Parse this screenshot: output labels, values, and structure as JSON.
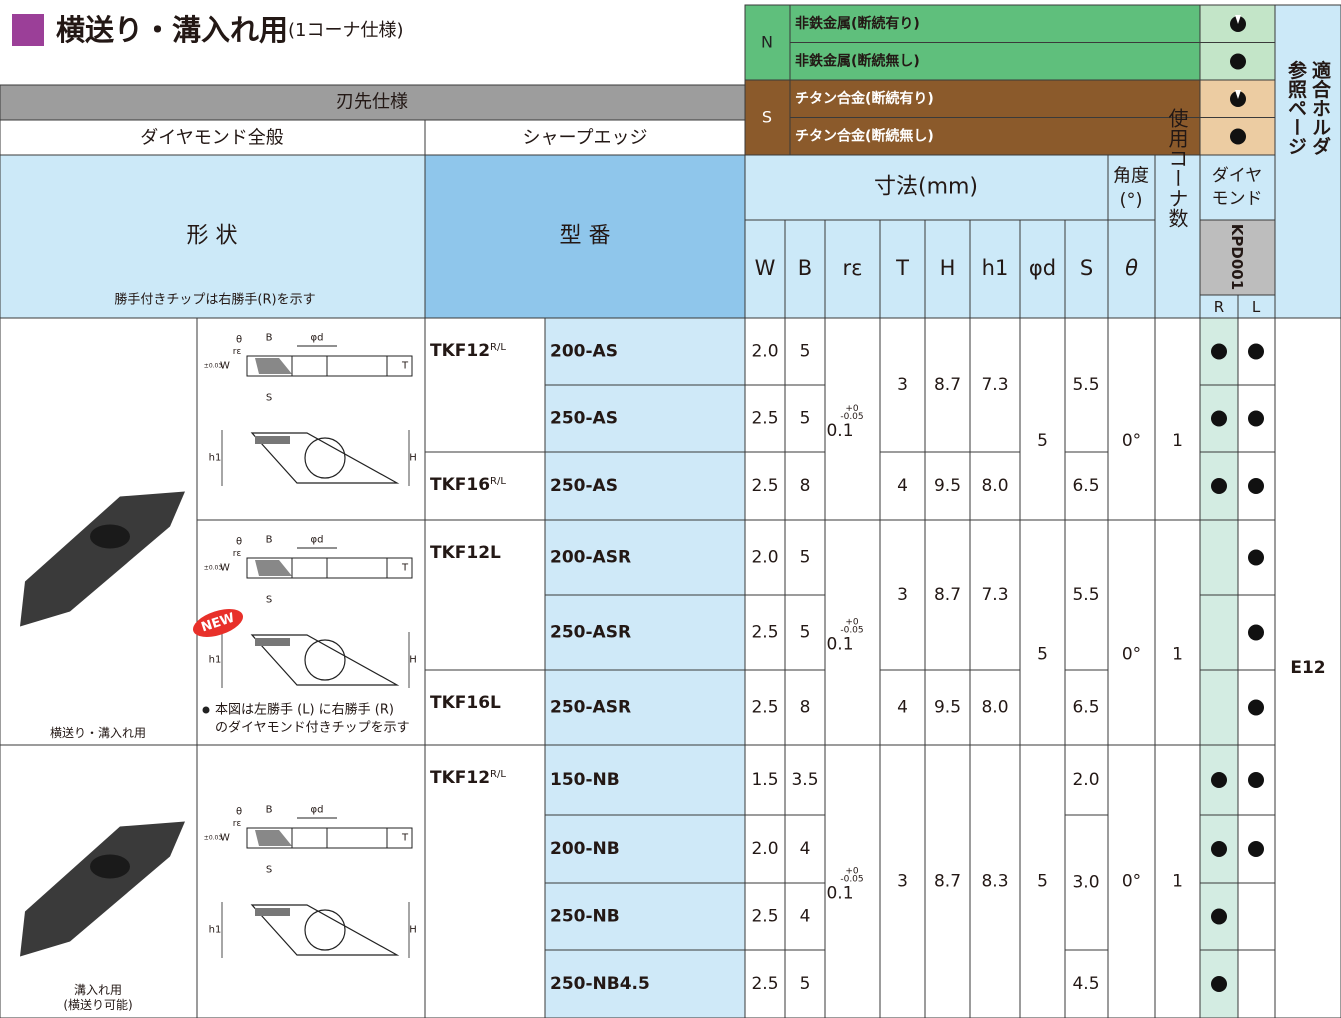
{
  "header": {
    "title": "横送り・溝入れ用",
    "title_note": "(1コーナ仕様)"
  },
  "materials": [
    {
      "group": "N",
      "rows": [
        {
          "name": "非鉄金属(断続有り)",
          "interrupted": true
        },
        {
          "name": "非鉄金属(断続無し)",
          "interrupted": false
        }
      ]
    },
    {
      "group": "S",
      "rows": [
        {
          "name": "チタン合金(断続有り)",
          "interrupted": true
        },
        {
          "name": "チタン合金(断続無し)",
          "interrupted": false
        }
      ]
    }
  ],
  "table": {
    "edge_spec": "刃先仕様",
    "diamond_general": "ダイヤモンド全般",
    "sharp_edge": "シャープエッジ",
    "shape": "形 状",
    "shape_note": "勝手付きチップは右勝手(R)を示す",
    "model": "型 番",
    "dimensions": "寸法(mm)",
    "angle": [
      "角度",
      "(°)"
    ],
    "corners": "使用コーナ数",
    "diamond": [
      "ダイヤ",
      "モンド"
    ],
    "grade": "KPD001",
    "hand_r": "R",
    "hand_l": "L",
    "holder": [
      "適合ホルダ",
      "参照ページ"
    ],
    "holder_page": "E12",
    "columns": [
      "W",
      "B",
      "rε",
      "T",
      "H",
      "h1",
      "φd",
      "S",
      "θ"
    ],
    "groups": [
      {
        "blocks": [
          {
            "series": "TKF12",
            "hand": "R/L",
            "T": "3",
            "H": "8.7",
            "h1": "7.3",
            "S": "5.5",
            "rows": [
              {
                "code": "200-AS",
                "W": "2.0",
                "B": "5",
                "R": true,
                "L": true
              },
              {
                "code": "250-AS",
                "W": "2.5",
                "B": "5",
                "R": true,
                "L": true
              }
            ]
          },
          {
            "series": "TKF16",
            "hand": "R/L",
            "T": "4",
            "H": "9.5",
            "h1": "8.0",
            "S": "6.5",
            "rows": [
              {
                "code": "250-AS",
                "W": "2.5",
                "B": "8",
                "R": true,
                "L": true
              }
            ]
          }
        ],
        "re": "0.1",
        "re_tol": [
          "+0",
          "-0.05"
        ],
        "phi_d": "5",
        "theta": "0°",
        "corner_count": "1"
      },
      {
        "blocks": [
          {
            "series": "TKF12L",
            "T": "3",
            "H": "8.7",
            "h1": "7.3",
            "S": "5.5",
            "rows": [
              {
                "code": "200-ASR",
                "W": "2.0",
                "B": "5",
                "R": false,
                "L": true
              },
              {
                "code": "250-ASR",
                "W": "2.5",
                "B": "5",
                "R": false,
                "L": true
              }
            ]
          },
          {
            "series": "TKF16L",
            "T": "4",
            "H": "9.5",
            "h1": "8.0",
            "S": "6.5",
            "rows": [
              {
                "code": "250-ASR",
                "W": "2.5",
                "B": "8",
                "R": false,
                "L": true
              }
            ]
          }
        ],
        "re": "0.1",
        "re_tol": [
          "+0",
          "-0.05"
        ],
        "phi_d": "5",
        "theta": "0°",
        "corner_count": "1"
      },
      {
        "blocks": [
          {
            "series": "TKF12",
            "hand": "R/L",
            "T": "3",
            "H": "8.7",
            "h1": "8.3",
            "rows": [
              {
                "code": "150-NB",
                "W": "1.5",
                "B": "3.5",
                "S": "2.0",
                "R": true,
                "L": true
              },
              {
                "code": "200-NB",
                "W": "2.0",
                "B": "4",
                "S": "3.0",
                "R": true,
                "L": true
              },
              {
                "code": "250-NB",
                "W": "2.5",
                "B": "4",
                "R": true,
                "L": false
              },
              {
                "code": "250-NB4.5",
                "W": "2.5",
                "B": "5",
                "S": "4.5",
                "R": true,
                "L": false
              }
            ]
          }
        ],
        "re": "0.1",
        "re_tol": [
          "+0",
          "-0.05"
        ],
        "phi_d": "5",
        "theta": "0°",
        "corner_count": "1"
      }
    ]
  },
  "drawing_labels": {
    "theta": "θ",
    "B": "B",
    "phi_d": "φd",
    "W": "W",
    "T": "T",
    "S": "S",
    "re": "rε",
    "h1": "h1",
    "H": "H",
    "tol": "±0.03"
  },
  "badge": "NEW",
  "footnote": [
    "本図は左勝手 (L) に右勝手 (R)",
    "のダイヤモンド付きチップを示す"
  ],
  "captions": [
    [
      "横送り・溝入れ用"
    ],
    [
      "溝入れ用",
      "(横送り可能)"
    ]
  ]
}
